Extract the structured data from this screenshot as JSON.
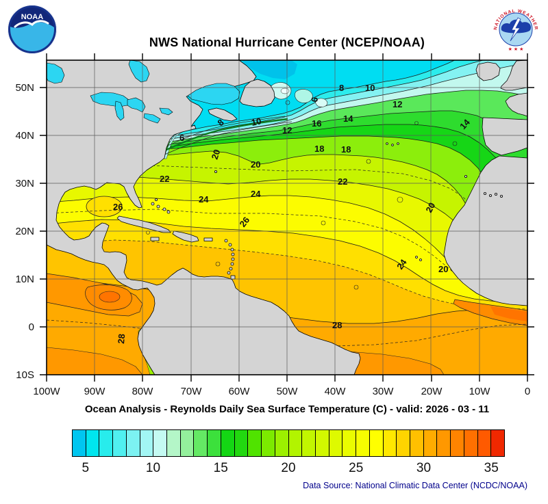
{
  "header": {
    "title": "NWS National Hurricane Center (NCEP/NOAA)"
  },
  "logos": {
    "noaa": "NOAA",
    "nws": "NATIONAL WEATHER SERVICE"
  },
  "axes": {
    "lat": [
      "50N",
      "40N",
      "30N",
      "20N",
      "10N",
      "0",
      "10S"
    ],
    "lon": [
      "100W",
      "90W",
      "80W",
      "70W",
      "60W",
      "50W",
      "40W",
      "30W",
      "20W",
      "10W",
      "0"
    ]
  },
  "contour_labels": [
    "6",
    "8",
    "10",
    "12",
    "20",
    "20",
    "22",
    "6",
    "8",
    "10",
    "12",
    "16",
    "14",
    "18",
    "18",
    "14",
    "22",
    "20",
    "24",
    "24",
    "26",
    "26",
    "24",
    "20",
    "28",
    "28"
  ],
  "subtitle": "Ocean Analysis - Reynolds Daily Sea Surface Temperature (C) - valid: 2026 - 03 - 11",
  "colorbar": {
    "min": 4,
    "max": 36,
    "tick_values": [
      5,
      10,
      15,
      20,
      25,
      30,
      35
    ],
    "tick_labels": [
      "5",
      "10",
      "15",
      "20",
      "25",
      "30",
      "35"
    ],
    "colors": [
      "#00c6f0",
      "#00e6ee",
      "#28ecec",
      "#50f0f0",
      "#7cf2f2",
      "#a2f6f4",
      "#c4faf2",
      "#b4f6c8",
      "#94f09c",
      "#64e964",
      "#3ce03c",
      "#14d614",
      "#22d810",
      "#50e300",
      "#7cea00",
      "#9cf000",
      "#b2f400",
      "#c2f600",
      "#d2f800",
      "#defa00",
      "#eafc00",
      "#f6fe00",
      "#ffff00",
      "#ffe800",
      "#ffd400",
      "#ffc000",
      "#ffac00",
      "#ff9800",
      "#ff8400",
      "#ff7000",
      "#ff5a00",
      "#f02800"
    ]
  },
  "footer": {
    "source": "Data Source: National Climatic Data Center (NCDC/NOAA)"
  },
  "map_colors": {
    "land": "#d4d4d4",
    "cold_water": "#00ddf2",
    "warm_water": "#ffaa00",
    "grid": "#5a5a5a"
  }
}
